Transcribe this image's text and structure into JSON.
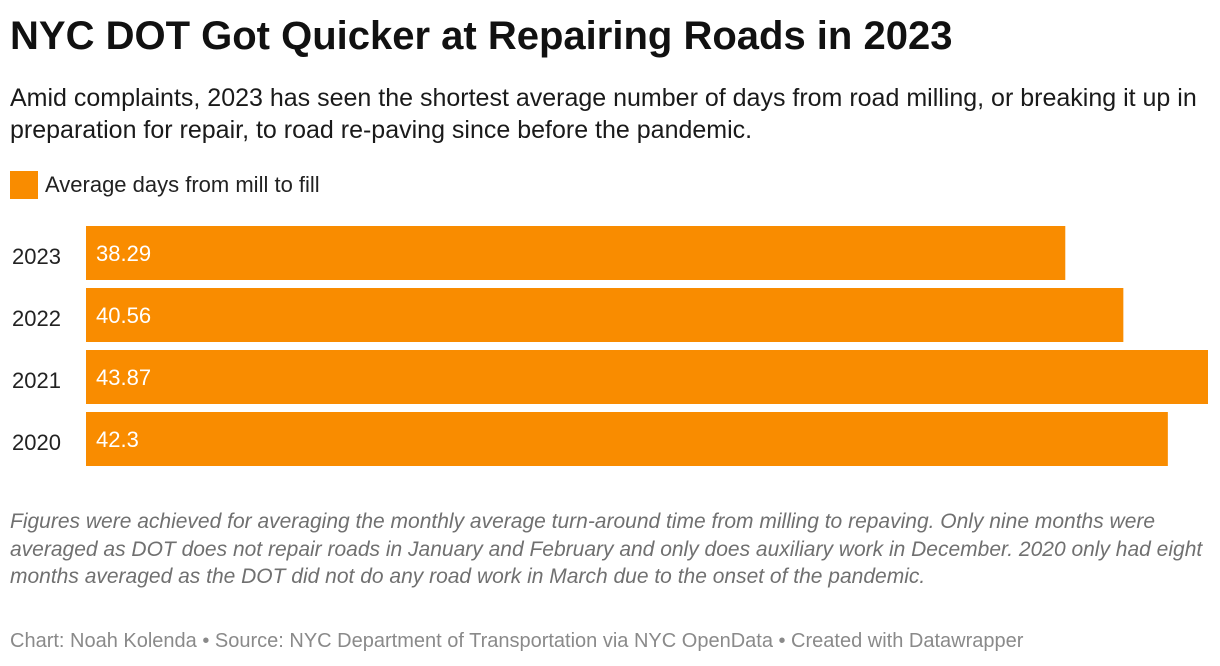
{
  "title": "NYC DOT Got Quicker at Repairing Roads in 2023",
  "subtitle": "Amid complaints, 2023 has seen the shortest average number of days from road milling, or breaking it up in preparation for repair, to road re-paving since before the pandemic.",
  "legend": {
    "label": "Average days from mill to fill",
    "color": "#f98c00"
  },
  "chart_data": {
    "type": "bar",
    "orientation": "horizontal",
    "title": "NYC DOT Got Quicker at Repairing Roads in 2023",
    "categories": [
      "2023",
      "2022",
      "2021",
      "2020"
    ],
    "series": [
      {
        "name": "Average days from mill to fill",
        "values": [
          38.29,
          40.56,
          43.87,
          42.3
        ],
        "labels": [
          "38.29",
          "40.56",
          "43.87",
          "42.3"
        ]
      }
    ],
    "xlim": [
      0,
      43.87
    ],
    "xlabel": "",
    "ylabel": "",
    "grid": false,
    "legend_position": "top-left"
  },
  "notes": "Figures were achieved for averaging the monthly average turn-around time from milling to repaving. Only nine months were averaged as DOT does not repair roads in January and February and only does auxiliary work in December. 2020 only had eight months averaged as the DOT did not do any road work in March due to the onset of the pandemic.",
  "byline": "Chart: Noah Kolenda • Source: NYC Department of Transportation via NYC OpenData • Created with Datawrapper"
}
